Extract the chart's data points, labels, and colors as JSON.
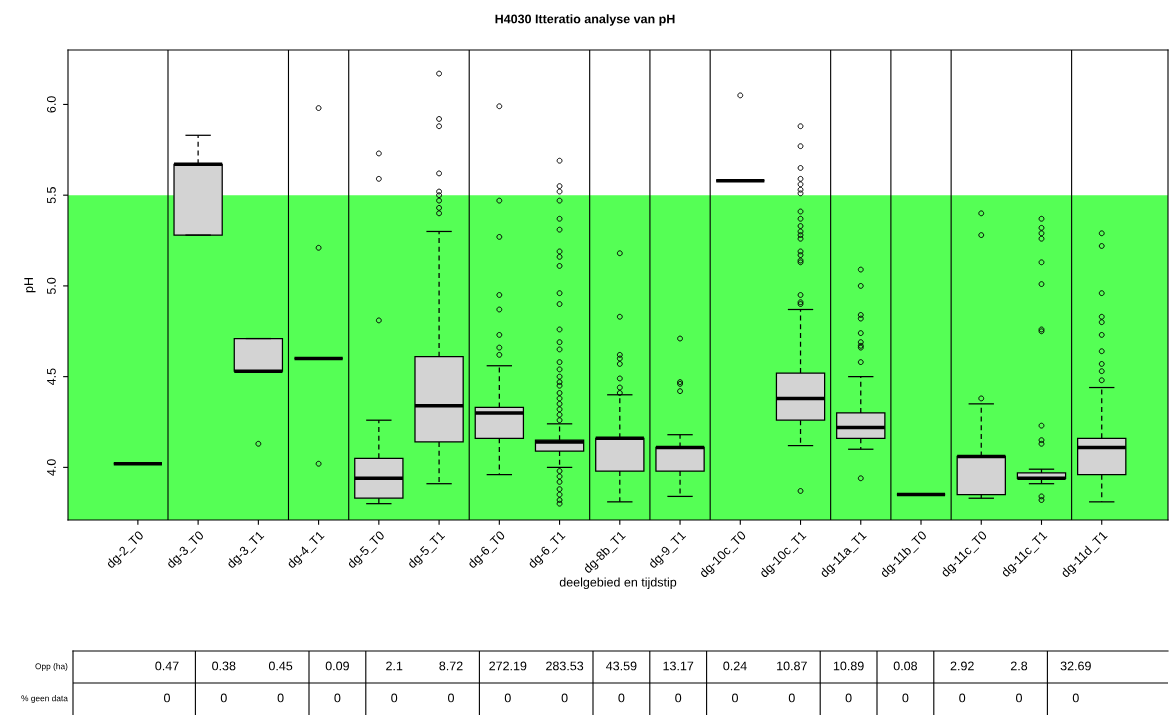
{
  "chart_data": [
    {
      "type": "box",
      "title": "H4030 Itteratio analyse van pH",
      "xlabel": "deelgebied en tijdstip",
      "ylabel": "pH",
      "categories": [
        "dg-2_T0",
        "dg-3_T0",
        "dg-3_T1",
        "dg-4_T1",
        "dg-5_T0",
        "dg-5_T1",
        "dg-6_T0",
        "dg-6_T1",
        "dg-8b_T1",
        "dg-9_T1",
        "dg-10c_T0",
        "dg-10c_T1",
        "dg-11a_T1",
        "dg-11b_T0",
        "dg-11c_T0",
        "dg-11c_T1",
        "dg-11d_T1"
      ],
      "ylim": [
        3.71,
        6.3
      ],
      "yticks": [
        {
          "value": 4,
          "label": "4.0"
        },
        4.5,
        {
          "value": 5,
          "label": "5.0"
        },
        5.5,
        {
          "value": 6,
          "label": "6.0"
        }
      ],
      "grid": false,
      "bands": [
        {
          "axis": "y",
          "from": 3.71,
          "to": 5.5,
          "color": "#55ff55"
        }
      ],
      "series": [
        {
          "boxes": [
            {
              "low": 4.02,
              "q1": 4.02,
              "median": 4.02,
              "q3": 4.02,
              "high": 4.02
            },
            {
              "low": 5.28,
              "q1": 5.28,
              "median": 5.67,
              "q3": 5.67,
              "high": 5.83
            },
            {
              "low": 4.53,
              "q1": 4.53,
              "median": 4.53,
              "q3": 4.71,
              "high": 4.71,
              "outliers": [
                4.13
              ]
            },
            {
              "low": 4.6,
              "q1": 4.6,
              "median": 4.6,
              "q3": 4.6,
              "high": 4.6,
              "outliers": [
                5.98,
                5.21,
                4.02
              ]
            },
            {
              "low": 3.8,
              "q1": 3.83,
              "median": 3.94,
              "q3": 4.05,
              "high": 4.26,
              "outliers": [
                4.81,
                5.59,
                5.73
              ]
            },
            {
              "low": 3.91,
              "q1": 4.14,
              "median": 4.34,
              "q3": 4.61,
              "high": 5.3,
              "outliers": [
                5.4,
                5.43,
                5.47,
                5.5,
                5.52,
                5.62,
                5.88,
                5.92,
                6.17
              ]
            },
            {
              "low": 3.96,
              "q1": 4.16,
              "median": 4.3,
              "q3": 4.33,
              "high": 4.56,
              "outliers": [
                4.62,
                4.66,
                4.73,
                4.87,
                4.95,
                5.27,
                5.47,
                5.99
              ]
            },
            {
              "low": 4.0,
              "q1": 4.09,
              "median": 4.14,
              "q3": 4.15,
              "high": 4.24,
              "outliers": [
                5.69,
                5.55,
                5.52,
                5.47,
                5.37,
                5.31,
                5.19,
                5.16,
                5.11,
                4.96,
                4.9,
                4.76,
                4.69,
                4.65,
                4.58,
                4.54,
                4.5,
                4.47,
                4.45,
                4.41,
                4.38,
                4.35,
                4.32,
                4.29,
                4.26,
                3.98,
                3.95,
                3.92,
                3.88,
                3.85,
                3.82,
                3.8
              ]
            },
            {
              "low": 3.81,
              "q1": 3.98,
              "median": 4.16,
              "q3": 4.16,
              "high": 4.4,
              "outliers": [
                5.18,
                4.83,
                4.62,
                4.6,
                4.57,
                4.49,
                4.44,
                4.41
              ]
            },
            {
              "low": 3.84,
              "q1": 3.98,
              "median": 4.11,
              "q3": 4.11,
              "high": 4.18,
              "outliers": [
                4.71,
                4.47,
                4.46,
                4.42
              ]
            },
            {
              "low": 5.58,
              "q1": 5.58,
              "median": 5.58,
              "q3": 5.58,
              "high": 5.58,
              "outliers": [
                6.05
              ]
            },
            {
              "low": 4.12,
              "q1": 4.26,
              "median": 4.38,
              "q3": 4.52,
              "high": 4.87,
              "outliers": [
                3.87,
                4.9,
                4.91,
                4.95,
                5.13,
                5.14,
                5.17,
                5.19,
                5.26,
                5.28,
                5.3,
                5.33,
                5.37,
                5.41,
                5.51,
                5.53,
                5.56,
                5.59,
                5.65,
                5.77,
                5.88
              ]
            },
            {
              "low": 4.1,
              "q1": 4.16,
              "median": 4.22,
              "q3": 4.3,
              "high": 4.5,
              "outliers": [
                3.94,
                4.58,
                4.66,
                4.67,
                4.69,
                4.74,
                4.82,
                4.84,
                5.0,
                5.09
              ]
            },
            {
              "low": 3.85,
              "q1": 3.85,
              "median": 3.85,
              "q3": 3.85,
              "high": 3.85
            },
            {
              "low": 3.83,
              "q1": 3.85,
              "median": 4.06,
              "q3": 4.06,
              "high": 4.35,
              "outliers": [
                4.38,
                5.28,
                5.4
              ]
            },
            {
              "low": 3.91,
              "q1": 3.94,
              "median": 3.94,
              "q3": 3.97,
              "high": 3.99,
              "outliers": [
                3.84,
                3.82,
                4.13,
                4.15,
                4.23,
                4.75,
                4.76,
                5.01,
                5.13,
                5.26,
                5.29,
                5.32,
                5.37
              ]
            },
            {
              "low": 3.81,
              "q1": 3.96,
              "median": 4.11,
              "q3": 4.16,
              "high": 4.44,
              "outliers": [
                4.48,
                4.53,
                4.57,
                4.64,
                4.73,
                4.8,
                4.83,
                4.96,
                5.22,
                5.29
              ]
            }
          ]
        }
      ]
    },
    {
      "type": "heatmap",
      "categories": [
        null,
        null,
        null,
        null,
        null,
        null,
        null,
        null,
        null,
        null,
        null,
        null,
        null,
        null,
        null,
        null,
        null
      ],
      "y_categories": [
        "Opp (ha)",
        "% geen data"
      ],
      "cells": [
        [
          0.47,
          0.38,
          0.45,
          0.09,
          2.1,
          8.72,
          272.19,
          283.53,
          43.59,
          13.17,
          0.24,
          10.87,
          10.89,
          0.08,
          2.92,
          2.8,
          32.69
        ],
        [
          0,
          0,
          0,
          0,
          0,
          0,
          0,
          0,
          0,
          0,
          0,
          0,
          0,
          0,
          0,
          0,
          0
        ]
      ],
      "data_labels": true
    }
  ]
}
